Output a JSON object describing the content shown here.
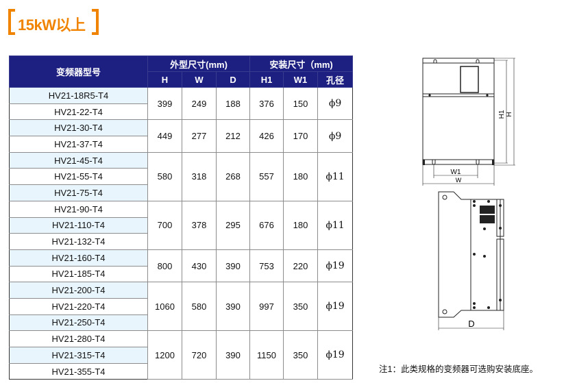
{
  "section_title": "15kW以上",
  "accent_color": "#f08300",
  "header_color": "#1e2081",
  "table": {
    "model_header": "变频器型号",
    "outer_group": "外型尺寸(mm)",
    "mount_group": "安装尺寸（mm)",
    "columns": [
      "H",
      "W",
      "D",
      "H1",
      "W1",
      "孔径"
    ],
    "groups": [
      {
        "models": [
          "HV21-18R5-T4",
          "HV21-22-T4"
        ],
        "values": [
          "399",
          "249",
          "188",
          "376",
          "150",
          "ϕ9"
        ]
      },
      {
        "models": [
          "HV21-30-T4",
          "HV21-37-T4"
        ],
        "values": [
          "449",
          "277",
          "212",
          "426",
          "170",
          "ϕ9"
        ]
      },
      {
        "models": [
          "HV21-45-T4",
          "HV21-55-T4",
          "HV21-75-T4"
        ],
        "values": [
          "580",
          "318",
          "268",
          "557",
          "180",
          "ϕ11"
        ]
      },
      {
        "models": [
          "HV21-90-T4",
          "HV21-110-T4",
          "HV21-132-T4"
        ],
        "values": [
          "700",
          "378",
          "295",
          "676",
          "180",
          "ϕ11"
        ]
      },
      {
        "models": [
          "HV21-160-T4",
          "HV21-185-T4"
        ],
        "values": [
          "800",
          "430",
          "390",
          "753",
          "220",
          "ϕ19"
        ]
      },
      {
        "models": [
          "HV21-200-T4",
          "HV21-220-T4",
          "HV21-250-T4"
        ],
        "values": [
          "1060",
          "580",
          "390",
          "997",
          "350",
          "ϕ19"
        ]
      },
      {
        "models": [
          "HV21-280-T4",
          "HV21-315-T4",
          "HV21-355-T4"
        ],
        "values": [
          "1200",
          "720",
          "390",
          "1150",
          "350",
          "ϕ19"
        ]
      }
    ]
  },
  "diagram": {
    "front_labels": {
      "h1": "H1",
      "h": "H",
      "w1": "W1",
      "w": "W"
    },
    "side_labels": {
      "d": "D"
    }
  },
  "note": "注1：此类规格的变频器可选购安装底座。"
}
